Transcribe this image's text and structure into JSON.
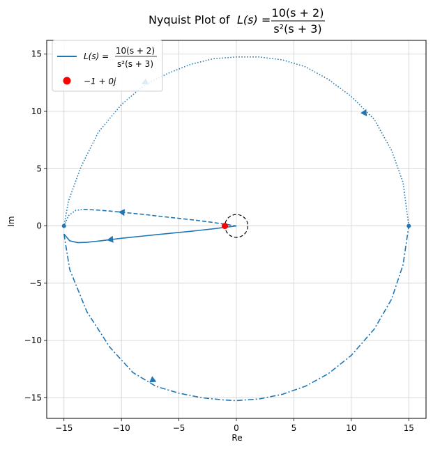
{
  "chart_data": {
    "type": "line",
    "title": {
      "prefix": "Nyquist Plot of ",
      "lhs": "L(s) = ",
      "numerator": "10(s + 2)",
      "denominator": "s²(s + 3)"
    },
    "xlabel": "Re",
    "ylabel": "Im",
    "xlim": [
      -16.5,
      16.5
    ],
    "ylim": [
      -16.8,
      16.2
    ],
    "xticks": [
      -15,
      -10,
      -5,
      0,
      5,
      10,
      15
    ],
    "yticks": [
      -15,
      -10,
      -5,
      0,
      5,
      10,
      15
    ],
    "xtick_labels": [
      "−15",
      "−10",
      "−5",
      "0",
      "5",
      "10",
      "15"
    ],
    "ytick_labels": [
      "−15",
      "−10",
      "−5",
      "0",
      "5",
      "10",
      "15"
    ],
    "grid": true,
    "legend": {
      "placement": "top-left",
      "entries": [
        {
          "key": "curve",
          "lhs": "L(s) = ",
          "numerator": "10(s + 2)",
          "denominator": "s²(s + 3)"
        },
        {
          "key": "point",
          "label": "−1 + 0j"
        }
      ]
    },
    "critical_point": {
      "x": -1,
      "y": 0,
      "color": "#ff0000"
    },
    "circle_around_origin": {
      "cx": 0,
      "cy": 0,
      "r": 1,
      "style": "dashed",
      "color": "#000000"
    },
    "series_color": "#1f77b4",
    "segments": [
      {
        "style": "solid",
        "x": [
          0,
          -1,
          -2,
          -3,
          -4,
          -5,
          -6,
          -7,
          -8,
          -9,
          -10,
          -11,
          -12,
          -13,
          -13.8,
          -14.5,
          -15
        ],
        "y": [
          0,
          -0.12,
          -0.25,
          -0.36,
          -0.47,
          -0.57,
          -0.67,
          -0.77,
          -0.87,
          -0.97,
          -1.08,
          -1.2,
          -1.32,
          -1.43,
          -1.46,
          -1.3,
          -0.7
        ],
        "arrow_at": [
          -11,
          -1.2
        ],
        "arrow_dir": [
          -1,
          -0.12
        ]
      },
      {
        "style": "dashdot",
        "x": [
          -15,
          -14.5,
          -13,
          -11,
          -9,
          -7,
          -5,
          -3,
          -1,
          0,
          2,
          4,
          6,
          8,
          10,
          12,
          13.5,
          14.5,
          15
        ],
        "y": [
          -0.7,
          -3.8,
          -7.5,
          -10.6,
          -12.8,
          -14.0,
          -14.6,
          -15.0,
          -15.2,
          -15.25,
          -15.1,
          -14.7,
          -14.0,
          -12.9,
          -11.3,
          -9.0,
          -6.4,
          -3.4,
          0
        ],
        "arrow_at": [
          -7.2,
          -13.5
        ],
        "arrow_dir": [
          1,
          -0.45
        ]
      },
      {
        "style": "dotted",
        "x": [
          15,
          14.5,
          13.5,
          12,
          10,
          8,
          6,
          4,
          2,
          0,
          -2,
          -4,
          -6,
          -8,
          -10,
          -12,
          -13.5,
          -14.6,
          -15
        ],
        "y": [
          0,
          3.8,
          6.6,
          9.3,
          11.3,
          12.8,
          13.9,
          14.5,
          14.75,
          14.75,
          14.6,
          14.1,
          13.3,
          12.3,
          10.6,
          8.2,
          5.2,
          2.2,
          0
        ],
        "arrow_at": [
          11.2,
          9.8
        ],
        "arrow_dir": [
          0.55,
          -0.83
        ],
        "arrow2_at": [
          -8.0,
          12.5
        ],
        "arrow2_dir": [
          -1,
          -0.45
        ]
      },
      {
        "style": "dotted",
        "x": [
          -15,
          -14.6,
          -14.0,
          -13.3
        ],
        "y": [
          0,
          0.9,
          1.35,
          1.45
        ],
        "arrow_at": null
      },
      {
        "style": "dashed",
        "x": [
          -13.3,
          -12,
          -11,
          -10,
          -9,
          -8,
          -7,
          -6,
          -5,
          -4,
          -3,
          -2,
          -1,
          0
        ],
        "y": [
          1.45,
          1.38,
          1.3,
          1.2,
          1.1,
          1.0,
          0.88,
          0.77,
          0.66,
          0.55,
          0.43,
          0.3,
          0.15,
          0
        ],
        "arrow_at": [
          -10,
          1.2
        ],
        "arrow_dir": [
          -1,
          0.1
        ]
      }
    ],
    "endpoint_markers": [
      {
        "x": 15,
        "y": 0
      },
      {
        "x": -15,
        "y": 0
      }
    ]
  }
}
